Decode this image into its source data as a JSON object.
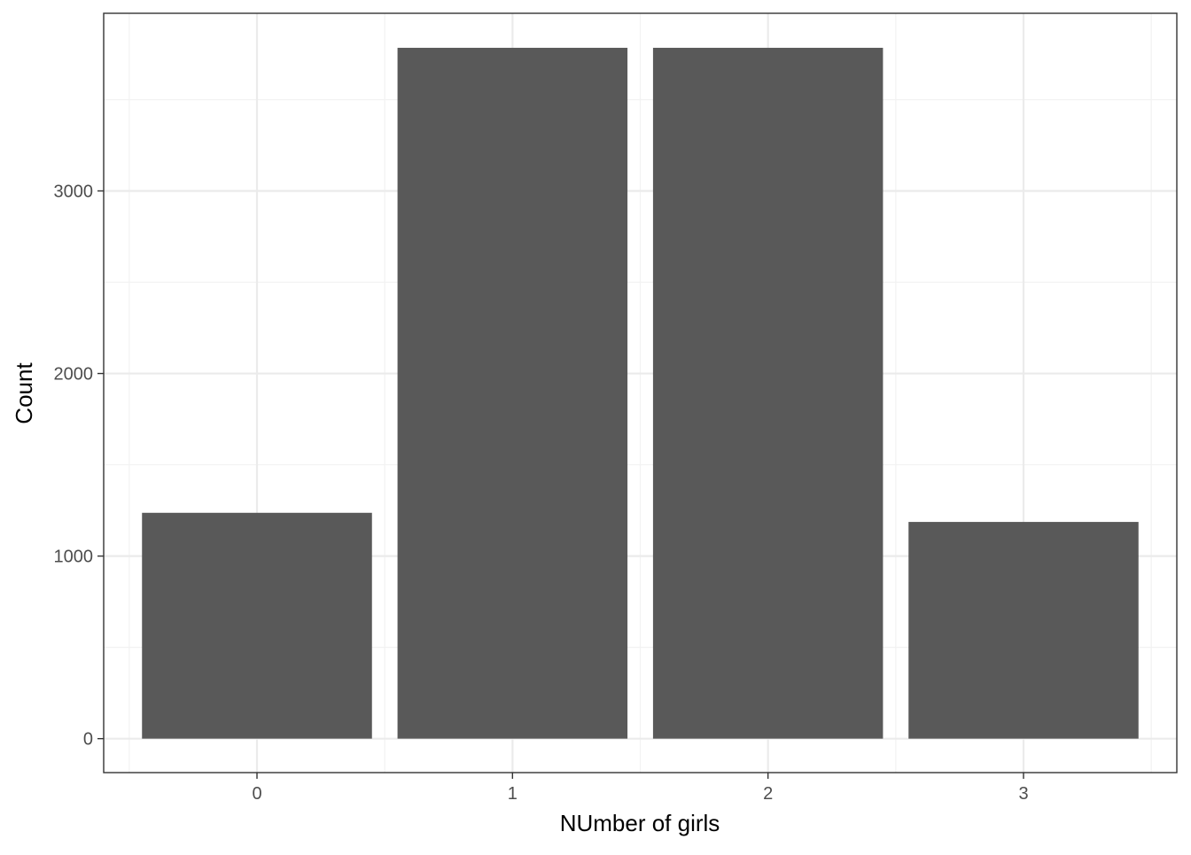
{
  "chart_data": {
    "type": "bar",
    "title": "",
    "xlabel": "NUmber of girls",
    "ylabel": "Count",
    "categories": [
      "0",
      "1",
      "2",
      "3"
    ],
    "values": [
      1237,
      3784,
      3784,
      1187
    ],
    "ylim": [
      -186,
      3973
    ],
    "yticks": [
      0,
      1000,
      2000,
      3000
    ],
    "grid": true,
    "legend": "none",
    "bar_color": "#595959",
    "grid_major_color": "#ebebeb",
    "grid_minor_color": "#f2f2f2",
    "panel_border_color": "#333333"
  }
}
